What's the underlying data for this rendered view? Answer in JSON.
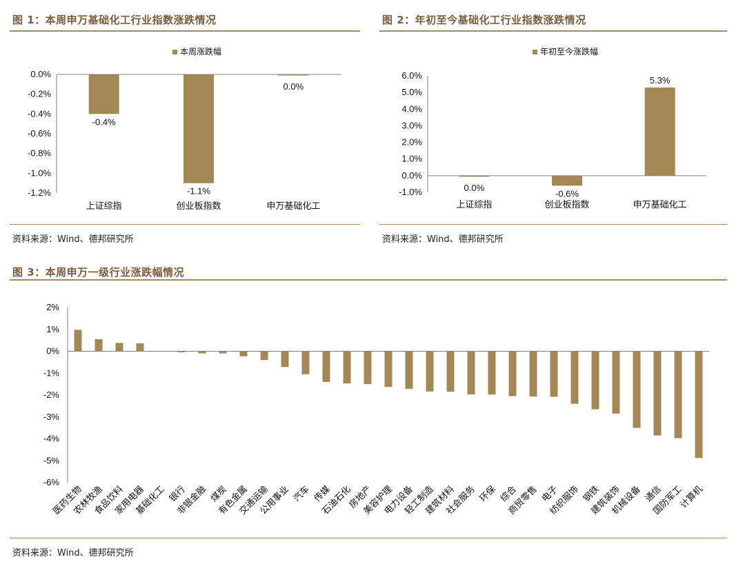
{
  "bar_color": "#a38855",
  "accent_color": "#7a5d3a",
  "fig1": {
    "title": "图 1：本周申万基础化工行业指数涨跌情况",
    "source": "资料来源：Wind、德邦研究所"
  },
  "fig2": {
    "title": "图 2：年初至今基础化工行业指数涨跌情况",
    "source": "资料来源：Wind、德邦研究所"
  },
  "fig3": {
    "title": "图 3：本周申万一级行业涨跌幅情况",
    "source": "资料来源：Wind、德邦研究所"
  },
  "chart_data": [
    {
      "type": "bar",
      "legend": "本周涨跌幅",
      "legend_position": "top-center",
      "categories": [
        "上证综指",
        "创业板指数",
        "申万基础化工"
      ],
      "values": [
        -0.4,
        -1.1,
        0.0
      ],
      "data_labels": [
        "-0.4%",
        "-1.1%",
        "0.0%"
      ],
      "ylim": [
        -1.2,
        0.0
      ],
      "yticks": [
        "0.0%",
        "-0.2%",
        "-0.4%",
        "-0.6%",
        "-0.8%",
        "-1.0%",
        "-1.2%"
      ],
      "ytick_values": [
        0.0,
        -0.2,
        -0.4,
        -0.6,
        -0.8,
        -1.0,
        -1.2
      ]
    },
    {
      "type": "bar",
      "legend": "年初至今涨跌幅",
      "legend_position": "top-center",
      "categories": [
        "上证综指",
        "创业板指数",
        "申万基础化工"
      ],
      "values": [
        0.0,
        -0.6,
        5.3
      ],
      "data_labels": [
        "0.0%",
        "-0.6%",
        "5.3%"
      ],
      "ylim": [
        -1.0,
        6.0
      ],
      "yticks": [
        "6.0%",
        "5.0%",
        "4.0%",
        "3.0%",
        "2.0%",
        "1.0%",
        "0.0%",
        "-1.0%"
      ],
      "ytick_values": [
        6.0,
        5.0,
        4.0,
        3.0,
        2.0,
        1.0,
        0.0,
        -1.0
      ]
    },
    {
      "type": "bar",
      "categories": [
        "医药生物",
        "农林牧渔",
        "食品饮料",
        "家用电器",
        "基础化工",
        "银行",
        "非银金融",
        "煤炭",
        "有色金属",
        "交通运输",
        "公用事业",
        "汽车",
        "传媒",
        "石油石化",
        "房地产",
        "美容护理",
        "电力设备",
        "轻工制造",
        "建筑材料",
        "社会服务",
        "环保",
        "综合",
        "商贸零售",
        "电子",
        "纺织服饰",
        "钢铁",
        "建筑装饰",
        "机械设备",
        "通信",
        "国防军工",
        "计算机"
      ],
      "values": [
        0.98,
        0.55,
        0.38,
        0.36,
        0.0,
        -0.04,
        -0.1,
        -0.1,
        -0.23,
        -0.4,
        -0.72,
        -1.05,
        -1.4,
        -1.47,
        -1.5,
        -1.63,
        -1.72,
        -1.84,
        -1.85,
        -1.97,
        -1.98,
        -2.05,
        -2.07,
        -2.08,
        -2.4,
        -2.65,
        -2.85,
        -3.5,
        -3.85,
        -3.97,
        -4.88
      ],
      "ylim": [
        -6,
        2
      ],
      "yticks": [
        "2%",
        "1%",
        "0%",
        "-1%",
        "-2%",
        "-3%",
        "-4%",
        "-5%",
        "-6%"
      ],
      "ytick_values": [
        2,
        1,
        0,
        -1,
        -2,
        -3,
        -4,
        -5,
        -6
      ]
    }
  ]
}
